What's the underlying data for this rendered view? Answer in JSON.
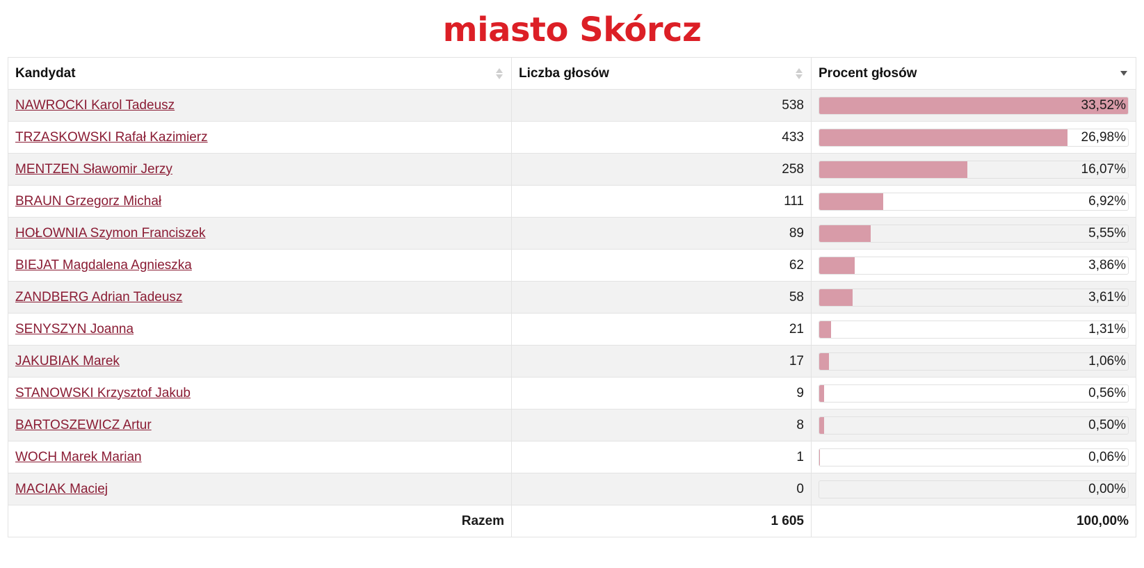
{
  "title": "miasto Skórcz",
  "colors": {
    "title": "#dc1f26",
    "link": "#8a1c34",
    "bar": "#d89ba8",
    "row_alt": "#f2f2f2"
  },
  "table": {
    "headers": {
      "candidate": "Kandydat",
      "votes": "Liczba głosów",
      "percent": "Procent głosów"
    },
    "sort": {
      "column": "percent",
      "direction": "descending"
    },
    "rows": [
      {
        "name": "NAWROCKI Karol Tadeusz",
        "votes": "538",
        "percent": "33,52%",
        "share": 0.3352
      },
      {
        "name": "TRZASKOWSKI Rafał Kazimierz",
        "votes": "433",
        "percent": "26,98%",
        "share": 0.2698
      },
      {
        "name": "MENTZEN Sławomir Jerzy",
        "votes": "258",
        "percent": "16,07%",
        "share": 0.1607
      },
      {
        "name": "BRAUN Grzegorz Michał",
        "votes": "111",
        "percent": "6,92%",
        "share": 0.0692
      },
      {
        "name": "HOŁOWNIA Szymon Franciszek",
        "votes": "89",
        "percent": "5,55%",
        "share": 0.0555
      },
      {
        "name": "BIEJAT Magdalena Agnieszka",
        "votes": "62",
        "percent": "3,86%",
        "share": 0.0386
      },
      {
        "name": "ZANDBERG Adrian Tadeusz",
        "votes": "58",
        "percent": "3,61%",
        "share": 0.0361
      },
      {
        "name": "SENYSZYN Joanna",
        "votes": "21",
        "percent": "1,31%",
        "share": 0.0131
      },
      {
        "name": "JAKUBIAK Marek",
        "votes": "17",
        "percent": "1,06%",
        "share": 0.0106
      },
      {
        "name": "STANOWSKI Krzysztof Jakub",
        "votes": "9",
        "percent": "0,56%",
        "share": 0.0056
      },
      {
        "name": "BARTOSZEWICZ Artur",
        "votes": "8",
        "percent": "0,50%",
        "share": 0.005
      },
      {
        "name": "WOCH Marek Marian",
        "votes": "1",
        "percent": "0,06%",
        "share": 0.0006
      },
      {
        "name": "MACIAK Maciej",
        "votes": "0",
        "percent": "0,00%",
        "share": 0.0
      }
    ],
    "footer": {
      "label": "Razem",
      "votes": "1 605",
      "percent": "100,00%"
    }
  }
}
